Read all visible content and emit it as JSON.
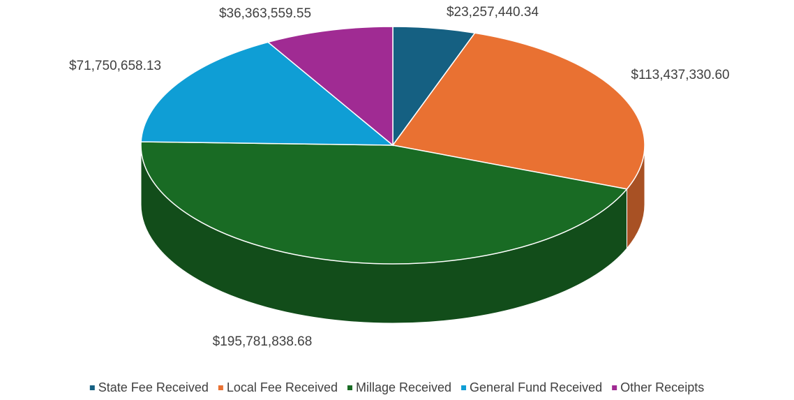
{
  "chart_data": {
    "type": "pie",
    "categories": [
      "State Fee Received",
      "Local Fee Received",
      "Millage Received",
      "General Fund Received",
      "Other Receipts"
    ],
    "values": [
      23257440.34,
      113437330.6,
      195781838.68,
      71750658.13,
      36363559.55
    ],
    "value_labels": [
      "$23,257,440.34",
      "$113,437,330.60",
      "$195,781,838.68",
      "$71,750,658.13",
      "$36,363,559.55"
    ],
    "colors": [
      "#156082",
      "#e97132",
      "#196b24",
      "#0f9ed5",
      "#a02b93"
    ],
    "legend": "bottom"
  }
}
